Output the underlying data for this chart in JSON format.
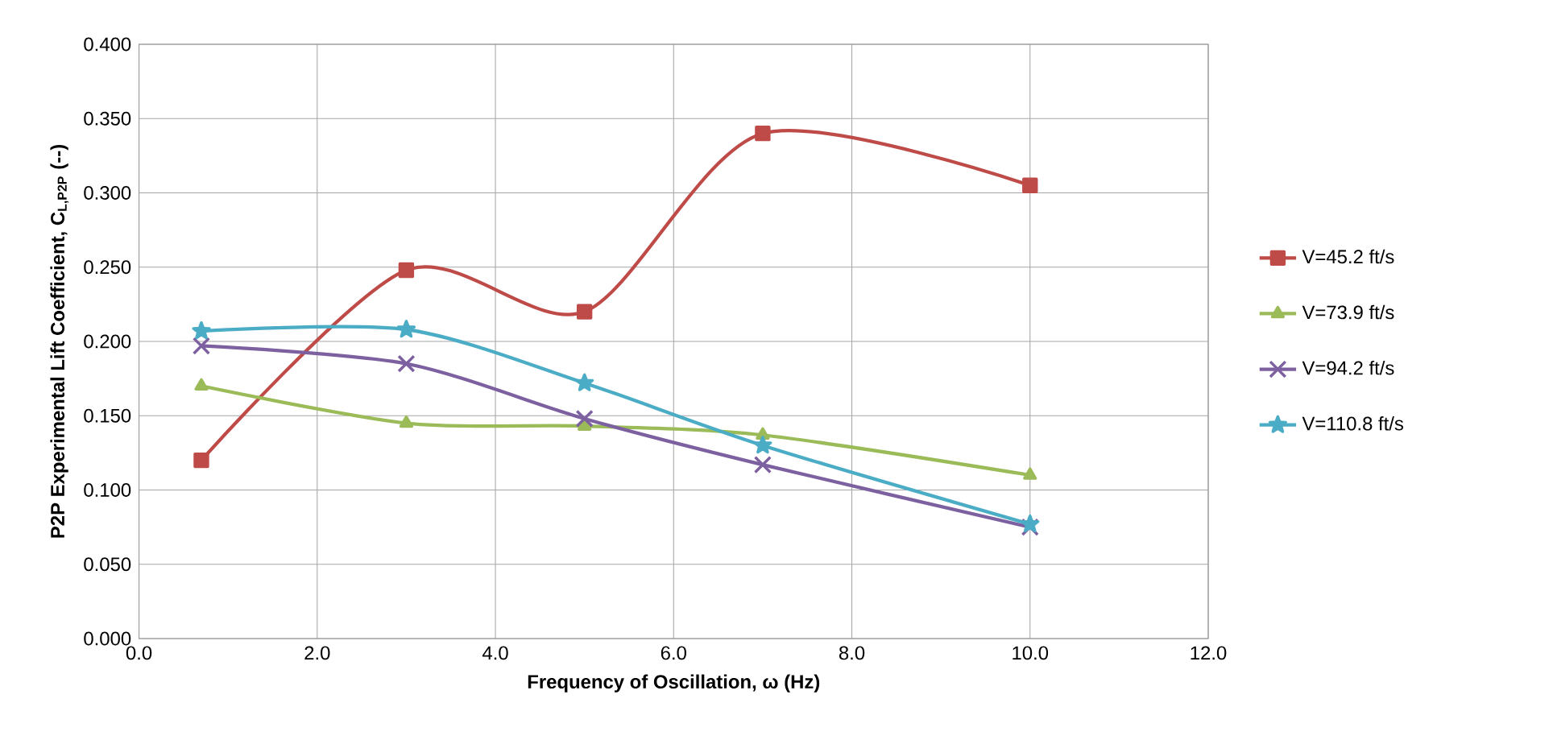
{
  "chart_data": {
    "type": "line",
    "xlabel": "Frequency of Oscillation,  ω (Hz)",
    "ylabel": "P2P Experimental Lift Coefficient,  C$_{L,P2P}$ (--)",
    "xlim": [
      0,
      12
    ],
    "ylim": [
      0,
      0.4
    ],
    "xticks": [
      {
        "value": 0,
        "label": "0.0"
      },
      {
        "value": 2,
        "label": "2.0"
      },
      {
        "value": 4,
        "label": "4.0"
      },
      {
        "value": 6,
        "label": "6.0"
      },
      {
        "value": 8,
        "label": "8.0"
      },
      {
        "value": 10,
        "label": "10.0"
      },
      {
        "value": 12,
        "label": "12.0"
      }
    ],
    "yticks": [
      {
        "value": 0,
        "label": "0.000"
      },
      {
        "value": 0.05,
        "label": "0.050"
      },
      {
        "value": 0.1,
        "label": "0.100"
      },
      {
        "value": 0.15,
        "label": "0.150"
      },
      {
        "value": 0.2,
        "label": "0.200"
      },
      {
        "value": 0.25,
        "label": "0.250"
      },
      {
        "value": 0.3,
        "label": "0.300"
      },
      {
        "value": 0.35,
        "label": "0.350"
      },
      {
        "value": 0.4,
        "label": "0.400"
      }
    ],
    "x": [
      0.7,
      3,
      5,
      7,
      10
    ],
    "series": [
      {
        "name": "V=45.2 ft/s",
        "color": "#be4b48",
        "marker": "square",
        "values": [
          0.12,
          0.248,
          0.22,
          0.34,
          0.305
        ]
      },
      {
        "name": "V=73.9 ft/s",
        "color": "#9bbb59",
        "marker": "triangle",
        "values": [
          0.17,
          0.145,
          0.143,
          0.137,
          0.11
        ]
      },
      {
        "name": "V=94.2 ft/s",
        "color": "#7d60a0",
        "marker": "cross",
        "values": [
          0.197,
          0.185,
          0.148,
          0.117,
          0.075
        ]
      },
      {
        "name": "V=110.8 ft/s",
        "color": "#4bacc6",
        "marker": "star",
        "values": [
          0.207,
          0.208,
          0.172,
          0.13,
          0.077
        ]
      }
    ],
    "grid": true,
    "legend": "right",
    "line_style": "solid"
  }
}
